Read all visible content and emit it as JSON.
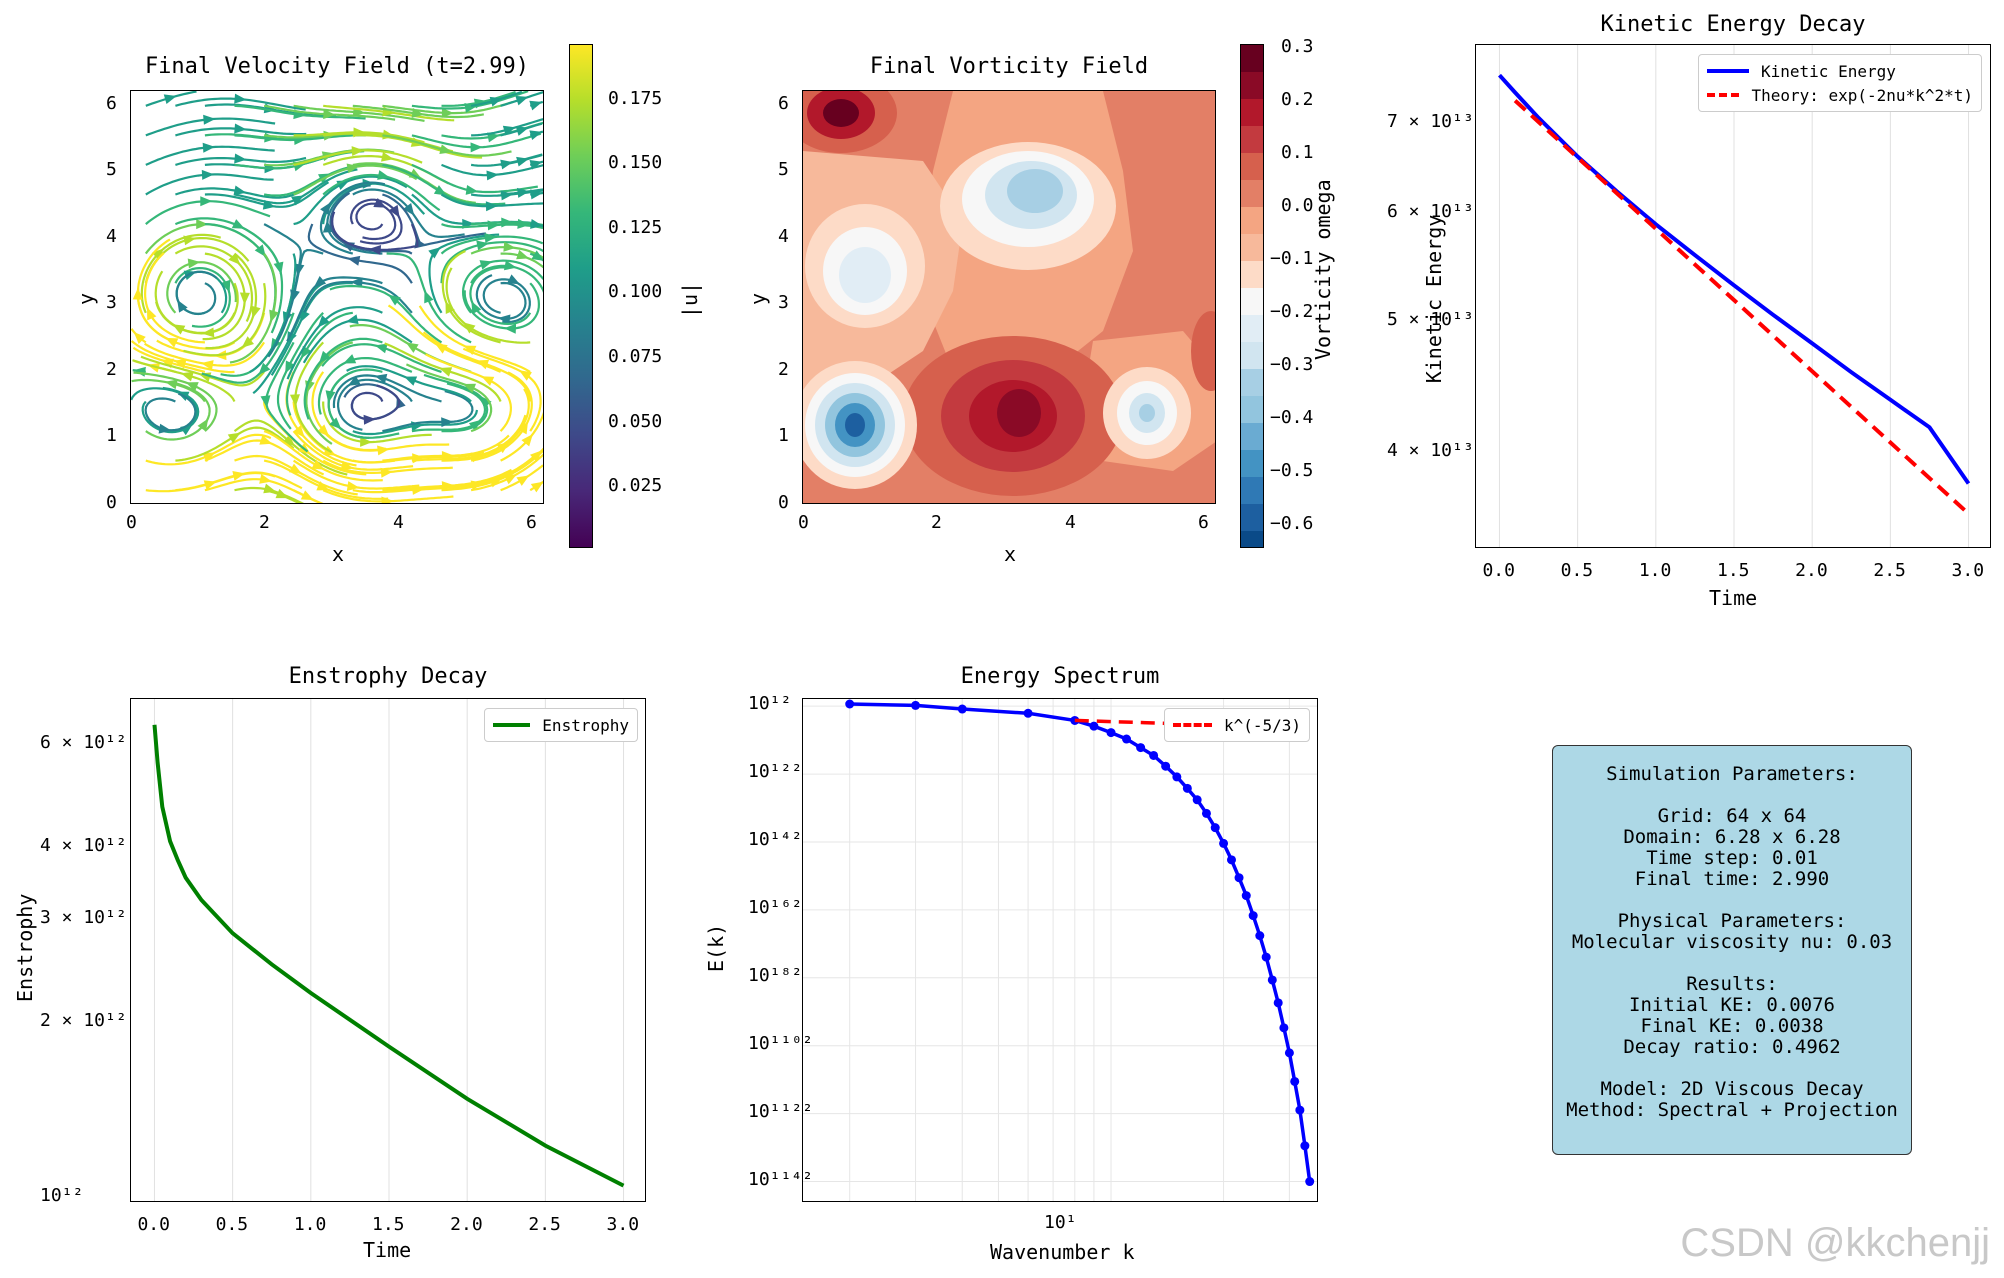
{
  "chart_data": [
    {
      "type": "streamplot",
      "title": "Final Velocity Field (t=2.99)",
      "xlabel": "x",
      "ylabel": "y",
      "xlim": [
        0,
        6.28
      ],
      "ylim": [
        0,
        6.28
      ],
      "xticks": [
        "0",
        "2",
        "4",
        "6"
      ],
      "yticks": [
        "0",
        "1",
        "2",
        "3",
        "4",
        "5",
        "6"
      ],
      "colorbar": {
        "label": "|u|",
        "colormap": "viridis",
        "range": [
          0.0,
          0.195
        ],
        "ticks": [
          "0.025",
          "0.050",
          "0.075",
          "0.100",
          "0.125",
          "0.150",
          "0.175"
        ]
      }
    },
    {
      "type": "contourf",
      "title": "Final Vorticity Field",
      "xlabel": "x",
      "ylabel": "y",
      "xlim": [
        0,
        6.28
      ],
      "ylim": [
        0,
        6.28
      ],
      "xticks": [
        "0",
        "2",
        "4",
        "6"
      ],
      "yticks": [
        "0",
        "1",
        "2",
        "3",
        "4",
        "5",
        "6"
      ],
      "colorbar": {
        "label": "Vorticity omega",
        "colormap": "RdBu_r",
        "range": [
          -0.65,
          0.3
        ],
        "ticks": [
          "0.3",
          "0.2",
          "0.1",
          "0.0",
          "−0.1",
          "−0.2",
          "−0.3",
          "−0.4",
          "−0.5",
          "−0.6"
        ]
      }
    },
    {
      "type": "line",
      "title": "Kinetic Energy Decay",
      "xlabel": "Time",
      "ylabel": "Kinetic Energy",
      "xlim": [
        -0.15,
        3.15
      ],
      "ylim": [
        0.0034,
        0.008
      ],
      "yscale": "log",
      "xticks": [
        "0.0",
        "0.5",
        "1.0",
        "1.5",
        "2.0",
        "2.5",
        "3.0"
      ],
      "yticks": [
        {
          "label": "7 × 10¹³",
          "value": 0.007
        },
        {
          "label": "6 × 10¹³",
          "value": 0.006
        },
        {
          "label": "5 × 10¹³",
          "value": 0.005
        },
        {
          "label": "4 × 10¹³",
          "value": 0.004
        }
      ],
      "legend_loc": "upper right",
      "series": [
        {
          "name": "Kinetic Energy",
          "color": "#0000ff",
          "style": "solid",
          "x": [
            0,
            0.1,
            0.25,
            0.5,
            0.75,
            1.0,
            1.25,
            1.5,
            1.75,
            2.0,
            2.25,
            2.5,
            2.75,
            3.0
          ],
          "y": [
            0.0076,
            0.00738,
            0.00707,
            0.00662,
            0.00624,
            0.0059,
            0.0056,
            0.00532,
            0.00506,
            0.00482,
            0.00459,
            0.00438,
            0.00418,
            0.0038
          ]
        },
        {
          "name": "Theory: exp(-2nu*k^2*t)",
          "color": "#ff0000",
          "style": "dashed",
          "x": [
            0.1,
            3.0
          ],
          "y": [
            0.00728,
            0.00361
          ]
        }
      ],
      "grid": "x"
    },
    {
      "type": "line",
      "title": "Enstrophy Decay",
      "xlabel": "Time",
      "ylabel": "Enstrophy",
      "xlim": [
        -0.15,
        3.15
      ],
      "ylim": [
        0.0098,
        0.0068
      ],
      "yscale": "log",
      "xticks": [
        "0.0",
        "0.5",
        "1.0",
        "1.5",
        "2.0",
        "2.5",
        "3.0"
      ],
      "yticks": [
        {
          "label": "6 × 10¹²",
          "value": 0.06
        },
        {
          "label": "4 × 10¹²",
          "value": 0.04
        },
        {
          "label": "3 × 10¹²",
          "value": 0.03
        },
        {
          "label": "2 × 10¹²",
          "value": 0.02
        },
        {
          "label": "10¹²",
          "value": 0.01
        }
      ],
      "legend_loc": "upper right",
      "series": [
        {
          "name": "Enstrophy",
          "color": "#008000",
          "style": "solid",
          "x": [
            0,
            0.02,
            0.05,
            0.1,
            0.15,
            0.2,
            0.3,
            0.5,
            0.75,
            1.0,
            1.5,
            2.0,
            2.5,
            3.0
          ],
          "y": [
            0.065,
            0.056,
            0.047,
            0.041,
            0.038,
            0.0355,
            0.0325,
            0.0285,
            0.0252,
            0.0225,
            0.0182,
            0.0148,
            0.0123,
            0.0105
          ]
        }
      ],
      "grid": "x"
    },
    {
      "type": "line",
      "title": "Energy Spectrum",
      "xlabel": "Wavenumber k",
      "ylabel": "E(k)",
      "xscale": "log",
      "yscale": "log",
      "xticks": [
        "10¹"
      ],
      "yticks": [
        "10¹²",
        "10¹²²",
        "10¹⁴²",
        "10¹⁶²",
        "10¹⁸²",
        "10¹¹⁰²",
        "10¹¹²²",
        "10¹¹⁴²"
      ],
      "legend_loc": "upper right",
      "series": [
        {
          "name": "E(k)",
          "color": "#0000ff",
          "style": "solid-dots",
          "x": [
            2,
            3,
            4,
            6,
            8,
            9,
            10,
            11,
            12,
            13,
            14,
            15,
            16,
            17,
            18,
            19,
            20,
            21,
            22,
            23,
            24,
            25,
            26,
            27,
            28,
            29,
            30,
            31,
            32,
            33,
            34
          ],
          "log10_y": [
            -0.2,
            -0.4,
            -0.9,
            -1.5,
            -2.5,
            -3.3,
            -4.2,
            -5.1,
            -6.3,
            -7.4,
            -8.9,
            -10.4,
            -12.0,
            -13.6,
            -15.5,
            -17.5,
            -19.7,
            -22.0,
            -24.5,
            -27.0,
            -29.8,
            -32.6,
            -35.6,
            -38.8,
            -42.0,
            -45.5,
            -49.0,
            -53.0,
            -57.0,
            -62.0,
            -67.0
          ]
        },
        {
          "name": "k^(-5/3)",
          "color": "#ff0000",
          "style": "dashed",
          "x": [
            8,
            21
          ],
          "log10_y": [
            -2.5,
            -3.2
          ]
        }
      ],
      "grid": "both"
    }
  ],
  "params_box": {
    "lines": [
      "Simulation Parameters:",
      "",
      "Grid: 64 x 64",
      "Domain: 6.28 x 6.28",
      "Time step: 0.01",
      "Final time: 2.990",
      "",
      "Physical Parameters:",
      "Molecular viscosity nu: 0.03",
      "",
      "Results:",
      "Initial KE: 0.0076",
      "Final KE: 0.0038",
      "Decay ratio: 0.4962",
      "",
      "Model: 2D Viscous Decay",
      "Method: Spectral + Projection"
    ]
  },
  "watermark": "CSDN @kkchenjj"
}
